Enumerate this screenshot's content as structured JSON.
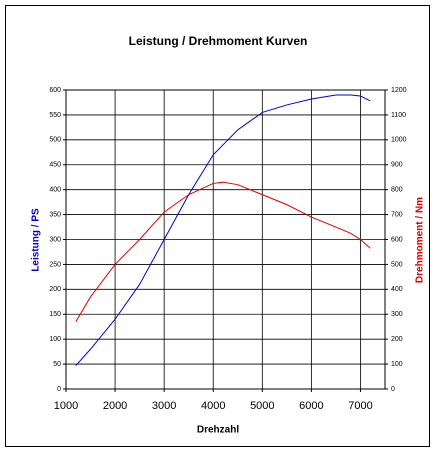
{
  "chart_data": {
    "type": "line",
    "title": "Leistung / Drehmoment Kurven",
    "xlabel": "Drehzahl",
    "ylabel": "Leistung / PS",
    "y2label": "Drehmoment / Nm",
    "x": [
      1200,
      1500,
      2000,
      2500,
      3000,
      3500,
      4000,
      4200,
      4500,
      5000,
      5500,
      6000,
      6500,
      6800,
      7000,
      7200
    ],
    "series": [
      {
        "color": "#0000cc",
        "axis": "y",
        "values": [
          47,
          80,
          140,
          210,
          300,
          390,
          470,
          490,
          520,
          555,
          570,
          582,
          590,
          590,
          588,
          578
        ]
      },
      {
        "color": "#e00000",
        "axis": "y2",
        "values": [
          270,
          370,
          500,
          600,
          710,
          780,
          825,
          830,
          820,
          780,
          740,
          690,
          650,
          625,
          600,
          565
        ]
      }
    ],
    "xlim": [
      1000,
      7500
    ],
    "xticks": [
      1000,
      2000,
      3000,
      4000,
      5000,
      6000,
      7000
    ],
    "ylim": [
      0,
      600
    ],
    "yticks": [
      0,
      50,
      100,
      150,
      200,
      250,
      300,
      350,
      400,
      450,
      500,
      550,
      600
    ],
    "y2lim": [
      0,
      1200
    ],
    "y2ticks": [
      0,
      100,
      200,
      300,
      400,
      500,
      600,
      700,
      800,
      900,
      1000,
      1100,
      1200
    ],
    "grid": true
  }
}
